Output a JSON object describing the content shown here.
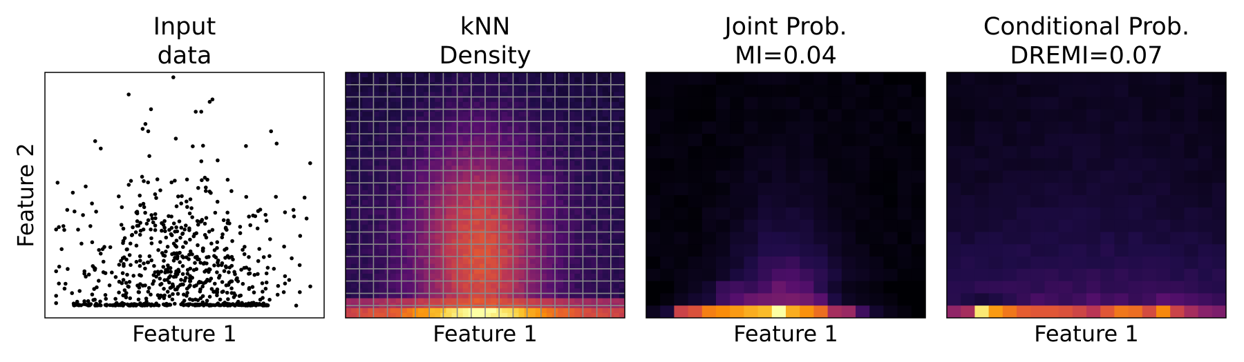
{
  "chart_data": [
    {
      "type": "scatter",
      "title_lines": [
        "Input",
        "data"
      ],
      "xlabel": "Feature 1",
      "ylabel": "Feature 2",
      "ticks": "none",
      "xlim": [
        0,
        1
      ],
      "ylim": [
        0,
        1
      ],
      "point_color": "#000000",
      "point_count_visible": 1000,
      "distribution_note_visible": "",
      "points_sample": [
        [
          0.46,
          0.98
        ],
        [
          0.3,
          0.91
        ],
        [
          0.38,
          0.85
        ],
        [
          0.59,
          0.88
        ],
        [
          0.6,
          0.89
        ],
        [
          0.56,
          0.84
        ],
        [
          0.54,
          0.84
        ],
        [
          0.36,
          0.79
        ],
        [
          0.37,
          0.76
        ],
        [
          0.35,
          0.77
        ],
        [
          0.18,
          0.72
        ],
        [
          0.2,
          0.69
        ],
        [
          0.72,
          0.7
        ],
        [
          0.81,
          0.76
        ],
        [
          0.83,
          0.71
        ],
        [
          0.95,
          0.63
        ],
        [
          0.93,
          0.49
        ],
        [
          0.89,
          0.44
        ],
        [
          0.86,
          0.43
        ],
        [
          0.79,
          0.42
        ],
        [
          0.1,
          0.51
        ],
        [
          0.08,
          0.44
        ],
        [
          0.05,
          0.37
        ],
        [
          0.04,
          0.36
        ],
        [
          0.06,
          0.28
        ],
        [
          0.04,
          0.19
        ],
        [
          0.05,
          0.14
        ],
        [
          0.04,
          0.09
        ],
        [
          0.04,
          0.06
        ],
        [
          0.82,
          0.2
        ],
        [
          0.86,
          0.17
        ],
        [
          0.86,
          0.14
        ],
        [
          0.9,
          0.05
        ]
      ],
      "baseline_y": 0.05,
      "baseline_xrange": [
        0.1,
        0.8
      ]
    },
    {
      "type": "heatmap",
      "title_lines": [
        "kNN",
        "Density"
      ],
      "xlabel": "Feature 1",
      "colormap": "inferno",
      "grid": true,
      "grid_color": "#8a8a8a",
      "grid_cells": [
        20,
        20
      ],
      "peak_location": "bottom row, center",
      "value_range": [
        0,
        1
      ]
    },
    {
      "type": "heatmap",
      "title_lines": [
        "Joint Prob.",
        "MI=0.04"
      ],
      "xlabel": "Feature 1",
      "colormap": "inferno",
      "grid_cells": [
        20,
        20
      ],
      "bottom_row": [
        0.05,
        0.1,
        0.55,
        0.6,
        0.72,
        0.75,
        0.78,
        0.82,
        0.85,
        1.0,
        0.82,
        0.76,
        0.68,
        0.45,
        0.42,
        0.2,
        0.08,
        0.04,
        0.02,
        0.0
      ],
      "second_row": [
        0.0,
        0.02,
        0.05,
        0.08,
        0.1,
        0.2,
        0.25,
        0.3,
        0.32,
        0.33,
        0.34,
        0.32,
        0.26,
        0.12,
        0.06,
        0.04,
        0.03,
        0.02,
        0.0,
        0.0
      ],
      "third_row": [
        0.0,
        0.0,
        0.03,
        0.05,
        0.08,
        0.18,
        0.2,
        0.18,
        0.22,
        0.3,
        0.26,
        0.24,
        0.15,
        0.08,
        0.04,
        0.03,
        0.02,
        0.0,
        0.0,
        0.0
      ]
    },
    {
      "type": "heatmap",
      "title_lines": [
        "Conditional Prob.",
        "DREMI=0.07"
      ],
      "xlabel": "Feature 1",
      "colormap": "inferno",
      "grid_cells": [
        20,
        20
      ],
      "bottom_row": [
        0.4,
        0.45,
        0.95,
        0.78,
        0.7,
        0.64,
        0.62,
        0.62,
        0.6,
        0.56,
        0.5,
        0.62,
        0.7,
        0.68,
        0.58,
        0.74,
        0.55,
        0.45,
        0.38,
        0.35
      ],
      "second_row": [
        0.15,
        0.12,
        0.1,
        0.12,
        0.15,
        0.18,
        0.22,
        0.2,
        0.18,
        0.2,
        0.24,
        0.2,
        0.22,
        0.18,
        0.2,
        0.26,
        0.24,
        0.22,
        0.2,
        0.18
      ]
    }
  ]
}
